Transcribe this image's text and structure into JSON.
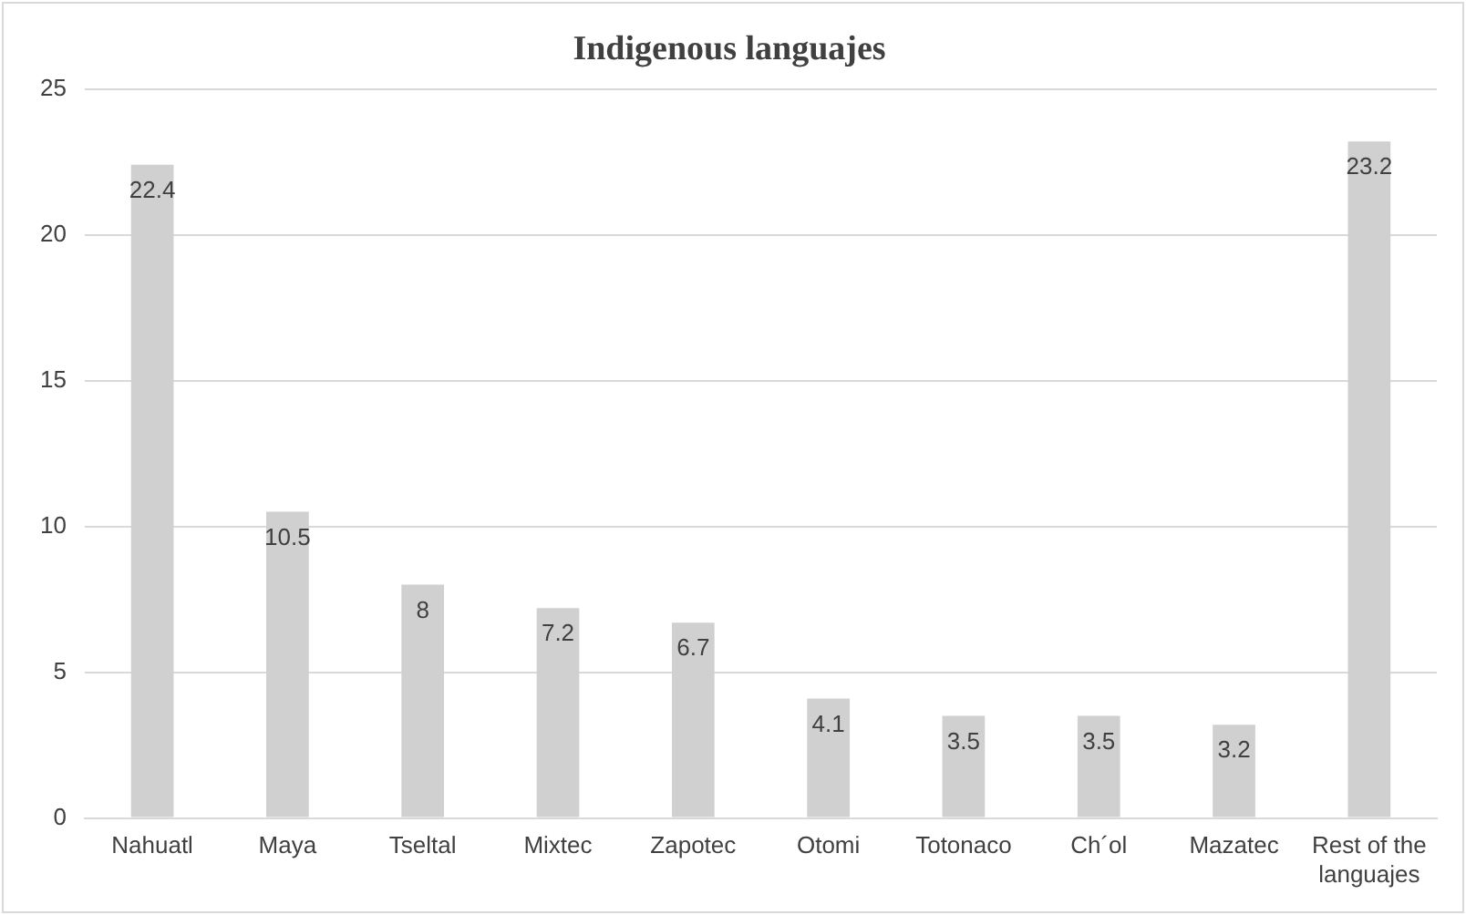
{
  "chart_data": {
    "type": "bar",
    "title": "Indigenous languajes",
    "categories": [
      "Nahuatl",
      "Maya",
      "Tseltal",
      "Mixtec",
      "Zapotec",
      "Otomi",
      "Totonaco",
      "Ch´ol",
      "Mazatec",
      "Rest of the languajes"
    ],
    "values": [
      22.4,
      10.5,
      8,
      7.2,
      6.7,
      4.1,
      3.5,
      3.5,
      3.2,
      23.2
    ],
    "color": "#d0d0d0",
    "ylim": [
      0,
      25
    ],
    "yticks": [
      0,
      5,
      10,
      15,
      20,
      25
    ],
    "grid": "y",
    "data_labels": true,
    "legend": false
  }
}
